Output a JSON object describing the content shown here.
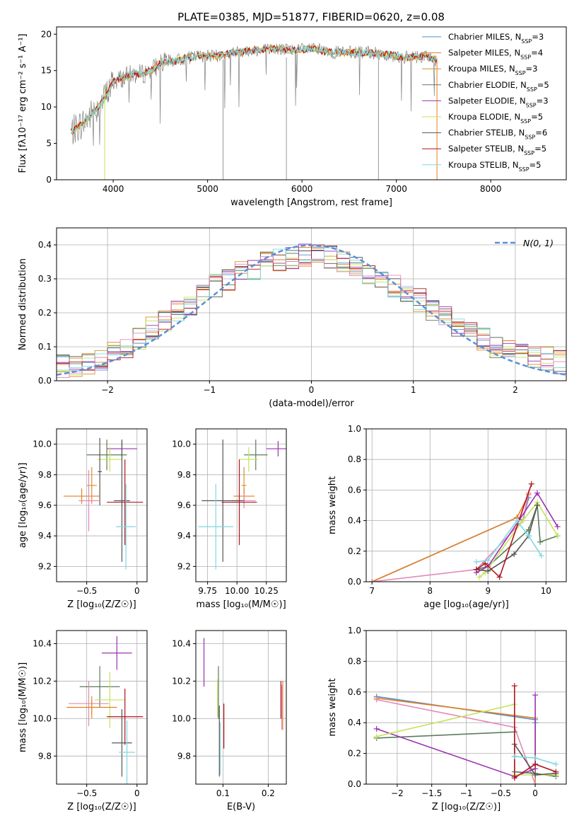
{
  "figure_title": "PLATE=0385, MJD=51877, FIBERID=0620, z=0.08",
  "colors": {
    "Chabrier MILES": "#4f8fc9",
    "Salpeter MILES": "#e67e22",
    "Kroupa MILES": "#d4932a",
    "Chabrier ELODIE": "#5a7d5a",
    "Salpeter ELODIE": "#9b30b0",
    "Kroupa ELODIE": "#c5e35a",
    "Chabrier STELIB": "#555555",
    "Salpeter STELIB": "#b0141c",
    "Kroupa STELIB": "#7fd8e0",
    "pink": "#e388b8",
    "data": "#808080",
    "gauss": "#5b8fd6"
  },
  "chart_data": [
    {
      "id": "spectrum",
      "type": "line",
      "title": "PLATE=0385, MJD=51877, FIBERID=0620, z=0.08",
      "xlabel": "wavelength [Angstrom, rest frame]",
      "ylabel": "Flux [fλ10⁻¹⁷ erg cm⁻² s⁻¹ A⁻¹]",
      "xlim": [
        3400,
        8800
      ],
      "ylim": [
        0,
        21
      ],
      "xticks": [
        4000,
        5000,
        6000,
        7000,
        8000
      ],
      "yticks": [
        0,
        5,
        10,
        15,
        20
      ],
      "grid": false,
      "legend_position": "right",
      "legend": [
        "Chabrier MILES, N_SSP=3",
        "Salpeter MILES, N_SSP=4",
        "Kroupa MILES, N_SSP=3",
        "Chabrier ELODIE, N_SSP=5",
        "Salpeter ELODIE, N_SSP=3",
        "Kroupa ELODIE, N_SSP=5",
        "Chabrier STELIB, N_SSP=6",
        "Salpeter STELIB, N_SSP=5",
        "Kroupa STELIB, N_SSP=5"
      ],
      "continuum": {
        "x": [
          3550,
          3650,
          3700,
          3800,
          3900,
          4000,
          4100,
          4200,
          4300,
          4400,
          4500,
          4700,
          4900,
          5100,
          5300,
          5500,
          5700,
          5900,
          6100,
          6300,
          6500,
          6700,
          6900,
          7100,
          7300,
          7400
        ],
        "y": [
          6.5,
          7.5,
          8.0,
          9.5,
          11.0,
          13.5,
          14.0,
          14.5,
          14.5,
          15.0,
          16.0,
          16.5,
          17.0,
          17.0,
          17.5,
          17.8,
          18.0,
          17.8,
          18.0,
          17.5,
          17.5,
          17.5,
          17.2,
          16.8,
          17.0,
          16.5
        ]
      }
    },
    {
      "id": "residuals",
      "type": "line",
      "xlabel": "(data-model)/error",
      "ylabel": "Normed distribution",
      "xlim": [
        -2.5,
        2.5
      ],
      "ylim": [
        0,
        0.45
      ],
      "xticks": [
        -2,
        -1,
        0,
        1,
        2
      ],
      "yticks": [
        0.0,
        0.1,
        0.2,
        0.3,
        0.4
      ],
      "grid": true,
      "legend_position": "top-right",
      "legend": [
        "N(0, 1)"
      ],
      "gaussian": {
        "mean": 0,
        "sigma": 1
      },
      "histogram_envelope": {
        "x": [
          -2.5,
          -2.25,
          -2.0,
          -1.75,
          -1.5,
          -1.25,
          -1.0,
          -0.75,
          -0.5,
          -0.25,
          0.0,
          0.25,
          0.5,
          0.75,
          1.0,
          1.25,
          1.5,
          1.75,
          2.0,
          2.25,
          2.5
        ],
        "y": [
          0.04,
          0.05,
          0.07,
          0.11,
          0.17,
          0.21,
          0.27,
          0.31,
          0.34,
          0.36,
          0.37,
          0.36,
          0.33,
          0.29,
          0.25,
          0.2,
          0.15,
          0.11,
          0.08,
          0.07,
          0.05
        ]
      }
    },
    {
      "id": "age_vs_Z",
      "type": "scatter",
      "xlabel": "Z [log₁₀(Z/Z☉)]",
      "ylabel": "age  [log₁₀(age/yr)]",
      "xlim": [
        -0.8,
        0.1
      ],
      "ylim": [
        9.1,
        10.1
      ],
      "xticks": [
        -0.5,
        0.0
      ],
      "yticks": [
        9.2,
        9.4,
        9.6,
        9.8,
        10.0
      ],
      "grid": true,
      "points": [
        {
          "model": "Salpeter ELODIE",
          "x": -0.15,
          "y": 9.97,
          "xerr": 0.15,
          "yerr": 0.05
        },
        {
          "model": "Chabrier ELODIE",
          "x": -0.3,
          "y": 9.93,
          "xerr": 0.2,
          "yerr": 0.1
        },
        {
          "model": "Kroupa ELODIE",
          "x": -0.27,
          "y": 9.9,
          "xerr": 0.12,
          "yerr": 0.08
        },
        {
          "model": "Chabrier STELIB",
          "x": -0.37,
          "y": 9.82,
          "xerr": 0.02,
          "yerr": 0.22
        },
        {
          "model": "Salpeter MILES",
          "x": -0.55,
          "y": 9.66,
          "xerr": 0.18,
          "yerr": 0.05
        },
        {
          "model": "Kroupa MILES",
          "x": -0.45,
          "y": 9.73,
          "xerr": 0.05,
          "yerr": 0.12
        },
        {
          "model": "pink",
          "x": -0.48,
          "y": 9.63,
          "xerr": 0.1,
          "yerr": 0.2
        },
        {
          "model": "Chabrier STELIB",
          "x": -0.15,
          "y": 9.63,
          "xerr": 0.08,
          "yerr": 0.4
        },
        {
          "model": "Salpeter STELIB",
          "x": -0.12,
          "y": 9.62,
          "xerr": 0.18,
          "yerr": 0.28
        },
        {
          "model": "Kroupa STELIB",
          "x": -0.11,
          "y": 9.46,
          "xerr": 0.1,
          "yerr": 0.28
        }
      ]
    },
    {
      "id": "age_vs_mass",
      "type": "scatter",
      "xlabel": "mass [log₁₀(M/M☉)]",
      "xlim": [
        9.65,
        10.42
      ],
      "ylim": [
        9.1,
        10.1
      ],
      "xticks": [
        9.75,
        10.0,
        10.25
      ],
      "xticklabels": [
        "9.75",
        "10.00",
        "10.25"
      ],
      "yticks": [
        9.2,
        9.4,
        9.6,
        9.8,
        10.0
      ],
      "grid": true,
      "points": [
        {
          "model": "Salpeter ELODIE",
          "x": 10.35,
          "y": 9.97,
          "xerr": 0.1,
          "yerr": 0.05
        },
        {
          "model": "Chabrier ELODIE",
          "x": 10.16,
          "y": 9.93,
          "xerr": 0.1,
          "yerr": 0.1
        },
        {
          "model": "Kroupa ELODIE",
          "x": 10.1,
          "y": 9.9,
          "xerr": 0.08,
          "yerr": 0.08
        },
        {
          "model": "Kroupa MILES",
          "x": 10.06,
          "y": 9.73,
          "xerr": 0.02,
          "yerr": 0.12
        },
        {
          "model": "Salpeter MILES",
          "x": 10.06,
          "y": 9.66,
          "xerr": 0.09,
          "yerr": 0.05
        },
        {
          "model": "pink",
          "x": 10.06,
          "y": 9.63,
          "xerr": 0.1,
          "yerr": 0.05
        },
        {
          "model": "Chabrier STELIB",
          "x": 9.88,
          "y": 9.63,
          "xerr": 0.18,
          "yerr": 0.4
        },
        {
          "model": "Salpeter STELIB",
          "x": 10.02,
          "y": 9.62,
          "xerr": 0.15,
          "yerr": 0.28
        },
        {
          "model": "Kroupa STELIB",
          "x": 9.82,
          "y": 9.46,
          "xerr": 0.15,
          "yerr": 0.28
        }
      ]
    },
    {
      "id": "weight_vs_age",
      "type": "line",
      "xlabel": "age  [log₁₀(age/yr)]",
      "ylabel": "mass weight",
      "xlim": [
        6.9,
        10.35
      ],
      "ylim": [
        0,
        1.0
      ],
      "xticks": [
        7,
        8,
        9,
        10
      ],
      "yticks": [
        0.0,
        0.2,
        0.4,
        0.6,
        0.8,
        1.0
      ],
      "grid": true,
      "series": [
        {
          "model": "Chabrier MILES",
          "x": [
            7.0,
            9.5,
            9.6,
            9.7
          ],
          "y": [
            0.0,
            0.42,
            0.4,
            0.55
          ]
        },
        {
          "model": "Salpeter MILES",
          "x": [
            7.0,
            9.5,
            9.7
          ],
          "y": [
            0.0,
            0.42,
            0.57
          ]
        },
        {
          "model": "pink",
          "x": [
            7.0,
            8.8,
            9.6,
            9.7
          ],
          "y": [
            0.0,
            0.08,
            0.4,
            0.58
          ]
        },
        {
          "model": "Chabrier ELODIE",
          "x": [
            8.8,
            9.0,
            9.7,
            9.85,
            9.9,
            10.2
          ],
          "y": [
            0.08,
            0.1,
            0.34,
            0.5,
            0.26,
            0.3
          ]
        },
        {
          "model": "Salpeter ELODIE",
          "x": [
            8.8,
            9.0,
            9.85,
            10.2
          ],
          "y": [
            0.06,
            0.1,
            0.58,
            0.36
          ]
        },
        {
          "model": "Kroupa ELODIE",
          "x": [
            8.85,
            8.95,
            9.6,
            9.85,
            10.2
          ],
          "y": [
            0.03,
            0.06,
            0.4,
            0.52,
            0.3
          ]
        },
        {
          "model": "Chabrier STELIB",
          "x": [
            8.8,
            9.0,
            9.45,
            9.7,
            9.85
          ],
          "y": [
            0.08,
            0.07,
            0.18,
            0.3,
            0.5
          ]
        },
        {
          "model": "Salpeter STELIB",
          "x": [
            8.8,
            8.95,
            9.2,
            9.75
          ],
          "y": [
            0.08,
            0.12,
            0.03,
            0.64
          ]
        },
        {
          "model": "Kroupa STELIB",
          "x": [
            8.8,
            9.0,
            9.5,
            9.7,
            9.92
          ],
          "y": [
            0.13,
            0.14,
            0.4,
            0.3,
            0.17
          ]
        }
      ]
    },
    {
      "id": "mass_vs_Z",
      "type": "scatter",
      "xlabel": "Z [log₁₀(Z/Z☉)]",
      "ylabel": "mass [log₁₀(M/M☉)]",
      "xlim": [
        -0.8,
        0.1
      ],
      "ylim": [
        9.65,
        10.47
      ],
      "xticks": [
        -0.5,
        0.0
      ],
      "yticks": [
        9.8,
        10.0,
        10.2,
        10.4
      ],
      "grid": true,
      "points": [
        {
          "model": "Salpeter ELODIE",
          "x": -0.2,
          "y": 10.35,
          "xerr": 0.15,
          "yerr": 0.09
        },
        {
          "model": "Chabrier ELODIE",
          "x": -0.37,
          "y": 10.17,
          "xerr": 0.2,
          "yerr": 0.11
        },
        {
          "model": "pink",
          "x": -0.48,
          "y": 10.08,
          "xerr": 0.2,
          "yerr": 0.12
        },
        {
          "model": "Kroupa ELODIE",
          "x": -0.27,
          "y": 10.1,
          "xerr": 0.15,
          "yerr": 0.15
        },
        {
          "model": "Salpeter MILES",
          "x": -0.45,
          "y": 10.06,
          "xerr": 0.25,
          "yerr": 0.04
        },
        {
          "model": "Kroupa MILES",
          "x": -0.45,
          "y": 10.06,
          "xerr": 0.05,
          "yerr": 0.06
        },
        {
          "model": "Salpeter STELIB",
          "x": -0.12,
          "y": 10.01,
          "xerr": 0.18,
          "yerr": 0.15
        },
        {
          "model": "Chabrier STELIB",
          "x": -0.15,
          "y": 9.87,
          "xerr": 0.1,
          "yerr": 0.18
        },
        {
          "model": "Kroupa STELIB",
          "x": -0.1,
          "y": 9.82,
          "xerr": 0.08,
          "yerr": 0.17
        }
      ]
    },
    {
      "id": "mass_vs_EBV",
      "type": "scatter",
      "xlabel": "E(B-V)",
      "xlim": [
        0.04,
        0.24
      ],
      "ylim": [
        9.65,
        10.47
      ],
      "xticks": [
        0.1,
        0.2
      ],
      "yticks": [
        9.8,
        10.0,
        10.2,
        10.4
      ],
      "grid": true,
      "points": [
        {
          "model": "Salpeter ELODIE",
          "x": 0.058,
          "y": 10.3,
          "xerr": 0,
          "yerr": 0.13
        },
        {
          "model": "Chabrier ELODIE",
          "x": 0.09,
          "y": 10.14,
          "xerr": 0,
          "yerr": 0.14
        },
        {
          "model": "Kroupa ELODIE",
          "x": 0.088,
          "y": 10.11,
          "xerr": 0,
          "yerr": 0.1
        },
        {
          "model": "Kroupa STELIB",
          "x": 0.094,
          "y": 9.84,
          "xerr": 0,
          "yerr": 0.14
        },
        {
          "model": "Chabrier STELIB",
          "x": 0.092,
          "y": 9.88,
          "xerr": 0,
          "yerr": 0.19
        },
        {
          "model": "Salpeter STELIB",
          "x": 0.102,
          "y": 9.96,
          "xerr": 0,
          "yerr": 0.12
        },
        {
          "model": "Salpeter MILES",
          "x": 0.232,
          "y": 10.07,
          "xerr": 0,
          "yerr": 0.13
        },
        {
          "model": "Salpeter STELIB",
          "x": 0.228,
          "y": 10.1,
          "xerr": 0,
          "yerr": 0.1
        },
        {
          "model": "pink",
          "x": 0.23,
          "y": 10.06,
          "xerr": 0,
          "yerr": 0.12
        }
      ]
    },
    {
      "id": "weight_vs_Z",
      "type": "line",
      "xlabel": "Z [log₁₀(Z/Z☉)]",
      "ylabel": "mass weight",
      "xlim": [
        -2.45,
        0.45
      ],
      "ylim": [
        0,
        1.0
      ],
      "xticks": [
        -2.0,
        -1.5,
        -1.0,
        -0.5,
        0.0
      ],
      "yticks": [
        0.0,
        0.2,
        0.4,
        0.6,
        0.8,
        1.0
      ],
      "grid": true,
      "series": [
        {
          "model": "Chabrier MILES",
          "x": [
            -2.3,
            0.0,
            0.0
          ],
          "y": [
            0.57,
            0.42,
            0.4
          ]
        },
        {
          "model": "Salpeter MILES",
          "x": [
            -2.3,
            0.0,
            0.0
          ],
          "y": [
            0.56,
            0.43,
            0.0
          ]
        },
        {
          "model": "pink",
          "x": [
            -2.3,
            -0.3,
            -0.0
          ],
          "y": [
            0.55,
            0.37,
            0.0
          ]
        },
        {
          "model": "Chabrier ELODIE",
          "x": [
            -2.3,
            -0.3,
            -0.3,
            0.0,
            0.3
          ],
          "y": [
            0.3,
            0.34,
            0.08,
            0.07,
            0.05
          ]
        },
        {
          "model": "Salpeter ELODIE",
          "x": [
            -2.3,
            -0.3,
            0.0,
            -0.0
          ],
          "y": [
            0.36,
            0.05,
            0.1,
            0.58
          ]
        },
        {
          "model": "Kroupa ELODIE",
          "x": [
            -2.3,
            -0.3,
            -0.3,
            0.3
          ],
          "y": [
            0.31,
            0.52,
            0.06,
            0.06
          ]
        },
        {
          "model": "Chabrier STELIB",
          "x": [
            -0.3,
            -0.3,
            0.0,
            0.3
          ],
          "y": [
            0.18,
            0.26,
            0.06,
            0.07
          ]
        },
        {
          "model": "Salpeter STELIB",
          "x": [
            -0.3,
            -0.3,
            0.0,
            0.3
          ],
          "y": [
            0.64,
            0.04,
            0.13,
            0.08
          ]
        },
        {
          "model": "Kroupa STELIB",
          "x": [
            -0.3,
            0.0,
            0.3
          ],
          "y": [
            0.18,
            0.17,
            0.13
          ]
        }
      ]
    }
  ]
}
